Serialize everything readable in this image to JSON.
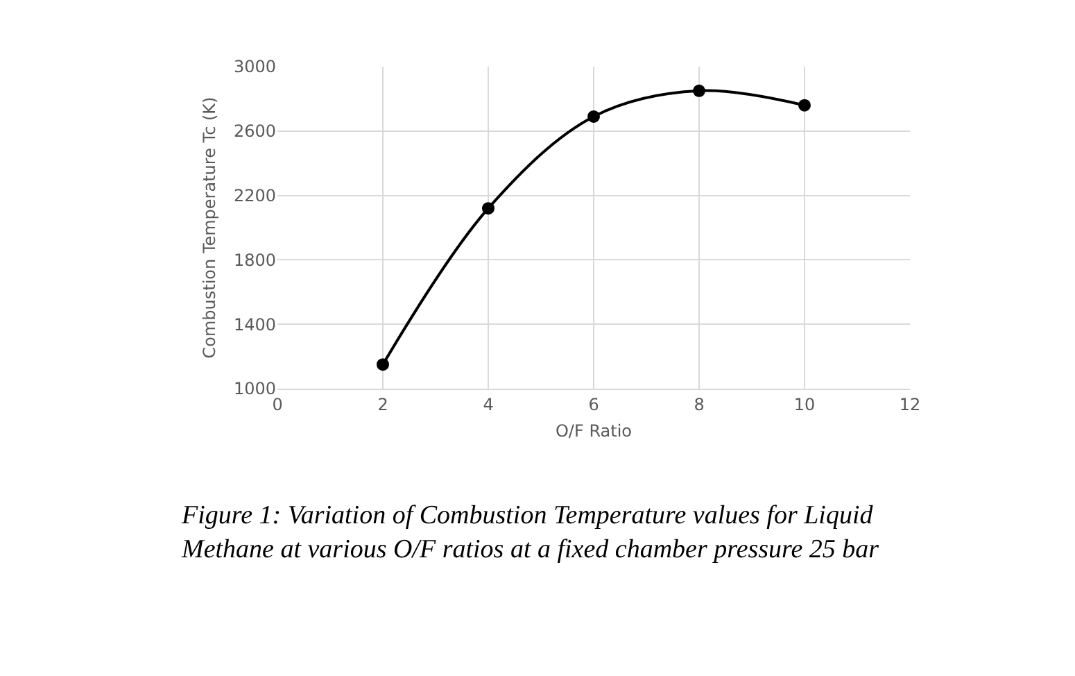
{
  "chart_data": {
    "type": "line",
    "xlabel": "O/F Ratio",
    "ylabel": "Combustion Temperature Tc (K)",
    "x": [
      2,
      4,
      6,
      8,
      10
    ],
    "series": [
      {
        "color": "#000000",
        "values": [
          1150,
          2120,
          2690,
          2850,
          2760
        ]
      }
    ],
    "xlim": [
      0,
      12
    ],
    "xticks": [
      0,
      2,
      4,
      6,
      8,
      10,
      12
    ],
    "ylim": [
      1000,
      3000
    ],
    "yticks": [
      1000,
      1400,
      1800,
      2200,
      2600,
      3000
    ],
    "grid": true,
    "marker": "circle",
    "line_style": "solid",
    "legend": false,
    "annotations": [
      "Figure 1: Variation of Combustion Temperature values for Liquid Methane at various O/F ratios at a fixed chamber pressure 25 bar"
    ]
  }
}
